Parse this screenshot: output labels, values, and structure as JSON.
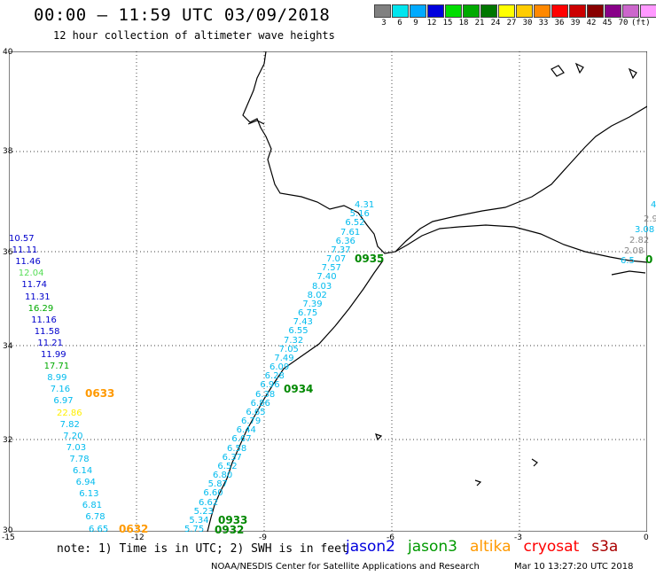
{
  "header": {
    "title": "00:00 – 11:59 UTC 03/09/2018",
    "subtitle": "12 hour collection of altimeter wave heights"
  },
  "color_scale": {
    "unit": "(ft)",
    "labels": [
      "3",
      "6",
      "9",
      "12",
      "15",
      "18",
      "21",
      "24",
      "27",
      "30",
      "33",
      "36",
      "39",
      "42",
      "45",
      "70"
    ],
    "colors": [
      "#808080",
      "#00e5ee",
      "#00aaff",
      "#0000dd",
      "#00dd00",
      "#00aa00",
      "#007700",
      "#ffff00",
      "#ffcc00",
      "#ff8800",
      "#ff0000",
      "#cc0000",
      "#880000",
      "#880088",
      "#cc66cc",
      "#ff99ff",
      "#000000"
    ]
  },
  "axes": {
    "lat_ticks": [
      "40",
      "38",
      "36",
      "34",
      "32",
      "30"
    ],
    "lon_ticks": [
      "-15",
      "-12",
      "-9",
      "-6",
      "-3",
      "0"
    ]
  },
  "tracks": {
    "west_track": [
      {
        "v": "10.57",
        "c": "#0000cc"
      },
      {
        "v": "11.11",
        "c": "#0000cc"
      },
      {
        "v": "11.46",
        "c": "#0000cc"
      },
      {
        "v": "12.04",
        "c": "#55dd55"
      },
      {
        "v": "11.74",
        "c": "#0000cc"
      },
      {
        "v": "11.31",
        "c": "#0000cc"
      },
      {
        "v": "16.29",
        "c": "#00aa00"
      },
      {
        "v": "11.16",
        "c": "#0000cc"
      },
      {
        "v": "11.58",
        "c": "#0000cc"
      },
      {
        "v": "11.21",
        "c": "#0000cc"
      },
      {
        "v": "11.99",
        "c": "#0000cc"
      },
      {
        "v": "17.71",
        "c": "#00aa00"
      },
      {
        "v": "8.99",
        "c": "#00bbee"
      },
      {
        "v": "7.16",
        "c": "#00bbee"
      },
      {
        "v": "6.97",
        "c": "#00bbee"
      },
      {
        "v": "22.86",
        "c": "#ffee00"
      },
      {
        "v": "7.82",
        "c": "#00bbee"
      },
      {
        "v": "7.20",
        "c": "#00bbee"
      },
      {
        "v": "7.03",
        "c": "#00bbee"
      },
      {
        "v": "7.78",
        "c": "#00bbee"
      },
      {
        "v": "6.14",
        "c": "#00bbee"
      },
      {
        "v": "6.94",
        "c": "#00bbee"
      },
      {
        "v": "6.13",
        "c": "#00bbee"
      },
      {
        "v": "6.81",
        "c": "#00bbee"
      },
      {
        "v": "6.78",
        "c": "#00bbee"
      },
      {
        "v": "6.65",
        "c": "#00bbee"
      }
    ],
    "coastal_track": [
      "4.31",
      "5.16",
      "6.52",
      "7.61",
      "6.36",
      "7.37",
      "7.07",
      "7.57",
      "7.40",
      "8.03",
      "8.02",
      "7.39",
      "6.75",
      "7.43",
      "6.55",
      "7.32",
      "7.05",
      "7.49",
      "6.09",
      "6.28",
      "6.96",
      "6.38",
      "6.86",
      "6.65",
      "6.79",
      "6.44",
      "6.67",
      "6.58",
      "6.37",
      "6.52",
      "6.80",
      "5.87",
      "6.60",
      "6.62",
      "5.23",
      "5.34",
      "5.75"
    ],
    "east_track": [
      {
        "v": "4",
        "c": "#00bbee"
      },
      {
        "v": "2.9",
        "c": "#888888"
      },
      {
        "v": "3.08",
        "c": "#00bbee"
      },
      {
        "v": "2.82",
        "c": "#888888"
      },
      {
        "v": "2.08",
        "c": "#888888"
      },
      {
        "v": "6.5",
        "c": "#00bbee"
      }
    ]
  },
  "pass_times": {
    "altika_west": "0633",
    "altika_south": "0632",
    "jason3_north": "0935",
    "jason3_mid": "0934",
    "jason3_south1": "0933",
    "jason3_south2": "0932",
    "east": "0"
  },
  "footer": {
    "note": "note: 1) Time is in UTC; 2) SWH is in feet",
    "satellites": [
      {
        "name": "jason2",
        "color": "#0000dd"
      },
      {
        "name": "jason3",
        "color": "#009900"
      },
      {
        "name": "altika",
        "color": "#ff9900"
      },
      {
        "name": "cryosat",
        "color": "#ff0000"
      },
      {
        "name": "s3a",
        "color": "#aa0000"
      }
    ],
    "credit": "NOAA/NESDIS Center for Satellite Applications and Research",
    "timestamp": "Mar 10 13:27:20 UTC 2018"
  }
}
